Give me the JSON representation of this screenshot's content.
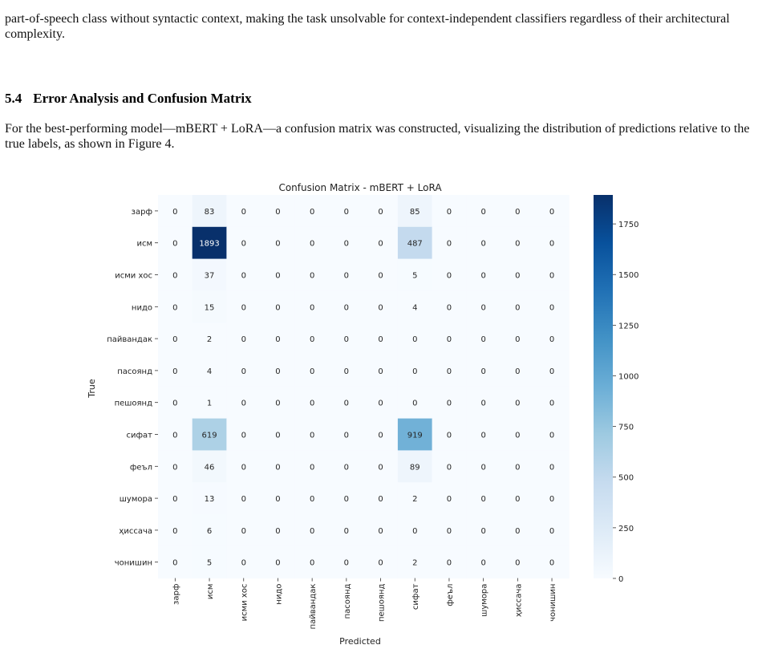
{
  "paragraph_1": "part-of-speech class without syntactic context, making the task unsolvable for context-independent classifiers regardless of their architectural complexity.",
  "section": {
    "number": "5.4",
    "title": "Error Analysis and Confusion Matrix"
  },
  "paragraph_2": "For the best-performing model—mBERT + LoRA—a confusion matrix was constructed, visualizing the distribution of predictions relative to the true labels, as shown in Figure 4.",
  "chart_data": {
    "type": "heatmap",
    "title": "Confusion Matrix - mBERT + LoRA",
    "xlabel": "Predicted",
    "ylabel": "True",
    "colormap": "Blues",
    "colors": {
      "low": "#f7fbff",
      "mid": "#6baed6",
      "high": "#08306b"
    },
    "labels": [
      "зарф",
      "исм",
      "исми хос",
      "нидо",
      "пайвандак",
      "пасоянд",
      "пешоянд",
      "сифат",
      "феъл",
      "шумора",
      "ҳиссача",
      "чонишин"
    ],
    "matrix": [
      [
        0,
        83,
        0,
        0,
        0,
        0,
        0,
        85,
        0,
        0,
        0,
        0
      ],
      [
        0,
        1893,
        0,
        0,
        0,
        0,
        0,
        487,
        0,
        0,
        0,
        0
      ],
      [
        0,
        37,
        0,
        0,
        0,
        0,
        0,
        5,
        0,
        0,
        0,
        0
      ],
      [
        0,
        15,
        0,
        0,
        0,
        0,
        0,
        4,
        0,
        0,
        0,
        0
      ],
      [
        0,
        2,
        0,
        0,
        0,
        0,
        0,
        0,
        0,
        0,
        0,
        0
      ],
      [
        0,
        4,
        0,
        0,
        0,
        0,
        0,
        0,
        0,
        0,
        0,
        0
      ],
      [
        0,
        1,
        0,
        0,
        0,
        0,
        0,
        0,
        0,
        0,
        0,
        0
      ],
      [
        0,
        619,
        0,
        0,
        0,
        0,
        0,
        919,
        0,
        0,
        0,
        0
      ],
      [
        0,
        46,
        0,
        0,
        0,
        0,
        0,
        89,
        0,
        0,
        0,
        0
      ],
      [
        0,
        13,
        0,
        0,
        0,
        0,
        0,
        2,
        0,
        0,
        0,
        0
      ],
      [
        0,
        6,
        0,
        0,
        0,
        0,
        0,
        0,
        0,
        0,
        0,
        0
      ],
      [
        0,
        5,
        0,
        0,
        0,
        0,
        0,
        2,
        0,
        0,
        0,
        0
      ]
    ],
    "colorbar": {
      "min": 0,
      "max": 1893,
      "ticks": [
        0,
        250,
        500,
        750,
        1000,
        1250,
        1500,
        1750
      ]
    }
  }
}
